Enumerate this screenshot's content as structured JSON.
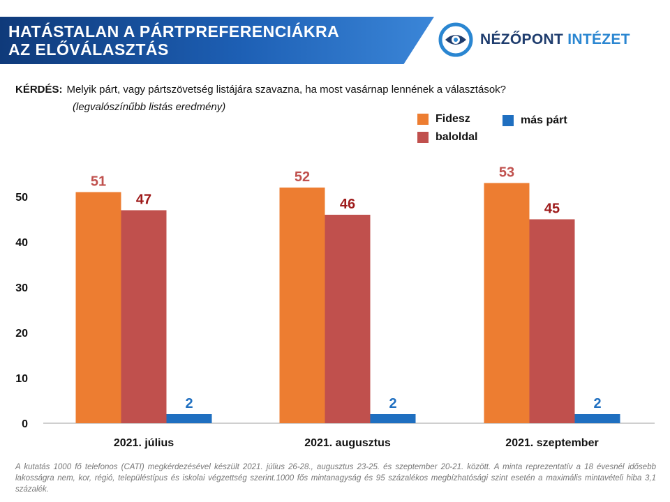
{
  "header": {
    "title_line1": "HATÁSTALAN A PÁRTPREFERENCIÁKRA",
    "title_line2": "AZ ELŐVÁLASZTÁS"
  },
  "logo": {
    "text_a": "NÉZŐPONT",
    "text_b": "INTÉZET",
    "icon": "target-eye-icon"
  },
  "question": {
    "label": "KÉRDÉS:",
    "text": "Melyik párt, vagy pártszövetség listájára szavazna, ha most vasárnap lennének a választások?",
    "subtext": "(legvalószínűbb listás eredmény)"
  },
  "colors": {
    "Fidesz": "#ed7d31",
    "baloldal": "#c0504d",
    "mas_part": "#1f6fc0",
    "header_blue": "#1d5fb4"
  },
  "chart_data": {
    "type": "bar",
    "categories": [
      "2021. július",
      "2021. augusztus",
      "2021. szeptember"
    ],
    "series": [
      {
        "name": "Fidesz",
        "values": [
          51,
          52,
          53
        ],
        "color": "#ed7d31",
        "label_color": "#c0504d"
      },
      {
        "name": "baloldal",
        "values": [
          47,
          46,
          45
        ],
        "color": "#c0504d",
        "label_color": "#9e1a1a"
      },
      {
        "name": "más párt",
        "values": [
          2,
          2,
          2
        ],
        "color": "#1f6fc0",
        "label_color": "#1f6fc0"
      }
    ],
    "yticks": [
      0,
      10,
      20,
      30,
      40,
      50
    ],
    "ylim": [
      0,
      53
    ],
    "grid": false,
    "legend": "top-right",
    "title": "",
    "xlabel": "",
    "ylabel": ""
  },
  "footnote": "A kutatás 1000 fő telefonos (CATI) megkérdezésével készült 2021. július 26-28., augusztus 23-25. és szeptember 20-21. között. A minta reprezentatív a 18 évesnél idősebb lakosságra nem, kor, régió, településtípus és iskolai végzettség szerint.1000 fős mintanagyság és 95 százalékos megbízhatósági szint esetén a maximális mintavételi hiba 3,1 százalék."
}
